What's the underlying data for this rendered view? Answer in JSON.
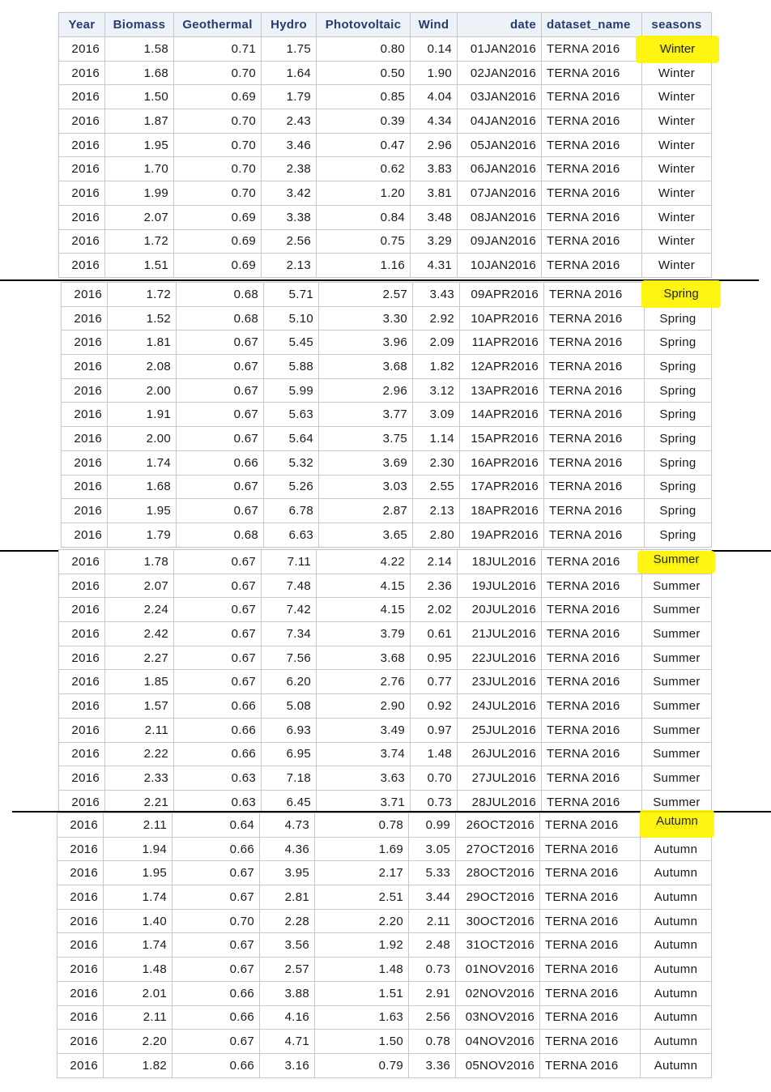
{
  "columns": [
    "Year",
    "Biomass",
    "Geothermal",
    "Hydro",
    "Photovoltaic",
    "Wind",
    "date",
    "dataset_name",
    "seasons"
  ],
  "sections": [
    {
      "season": "Winter",
      "rows": [
        [
          "2016",
          "1.58",
          "0.71",
          "1.75",
          "0.80",
          "0.14",
          "01JAN2016",
          "TERNA 2016",
          "Winter"
        ],
        [
          "2016",
          "1.68",
          "0.70",
          "1.64",
          "0.50",
          "1.90",
          "02JAN2016",
          "TERNA 2016",
          "Winter"
        ],
        [
          "2016",
          "1.50",
          "0.69",
          "1.79",
          "0.85",
          "4.04",
          "03JAN2016",
          "TERNA 2016",
          "Winter"
        ],
        [
          "2016",
          "1.87",
          "0.70",
          "2.43",
          "0.39",
          "4.34",
          "04JAN2016",
          "TERNA 2016",
          "Winter"
        ],
        [
          "2016",
          "1.95",
          "0.70",
          "3.46",
          "0.47",
          "2.96",
          "05JAN2016",
          "TERNA 2016",
          "Winter"
        ],
        [
          "2016",
          "1.70",
          "0.70",
          "2.38",
          "0.62",
          "3.83",
          "06JAN2016",
          "TERNA 2016",
          "Winter"
        ],
        [
          "2016",
          "1.99",
          "0.70",
          "3.42",
          "1.20",
          "3.81",
          "07JAN2016",
          "TERNA 2016",
          "Winter"
        ],
        [
          "2016",
          "2.07",
          "0.69",
          "3.38",
          "0.84",
          "3.48",
          "08JAN2016",
          "TERNA 2016",
          "Winter"
        ],
        [
          "2016",
          "1.72",
          "0.69",
          "2.56",
          "0.75",
          "3.29",
          "09JAN2016",
          "TERNA 2016",
          "Winter"
        ],
        [
          "2016",
          "1.51",
          "0.69",
          "2.13",
          "1.16",
          "4.31",
          "10JAN2016",
          "TERNA 2016",
          "Winter"
        ]
      ]
    },
    {
      "season": "Spring",
      "rows": [
        [
          "2016",
          "1.72",
          "0.68",
          "5.71",
          "2.57",
          "3.43",
          "09APR2016",
          "TERNA 2016",
          "Spring"
        ],
        [
          "2016",
          "1.52",
          "0.68",
          "5.10",
          "3.30",
          "2.92",
          "10APR2016",
          "TERNA 2016",
          "Spring"
        ],
        [
          "2016",
          "1.81",
          "0.67",
          "5.45",
          "3.96",
          "2.09",
          "11APR2016",
          "TERNA 2016",
          "Spring"
        ],
        [
          "2016",
          "2.08",
          "0.67",
          "5.88",
          "3.68",
          "1.82",
          "12APR2016",
          "TERNA 2016",
          "Spring"
        ],
        [
          "2016",
          "2.00",
          "0.67",
          "5.99",
          "2.96",
          "3.12",
          "13APR2016",
          "TERNA 2016",
          "Spring"
        ],
        [
          "2016",
          "1.91",
          "0.67",
          "5.63",
          "3.77",
          "3.09",
          "14APR2016",
          "TERNA 2016",
          "Spring"
        ],
        [
          "2016",
          "2.00",
          "0.67",
          "5.64",
          "3.75",
          "1.14",
          "15APR2016",
          "TERNA 2016",
          "Spring"
        ],
        [
          "2016",
          "1.74",
          "0.66",
          "5.32",
          "3.69",
          "2.30",
          "16APR2016",
          "TERNA 2016",
          "Spring"
        ],
        [
          "2016",
          "1.68",
          "0.67",
          "5.26",
          "3.03",
          "2.55",
          "17APR2016",
          "TERNA 2016",
          "Spring"
        ],
        [
          "2016",
          "1.95",
          "0.67",
          "6.78",
          "2.87",
          "2.13",
          "18APR2016",
          "TERNA 2016",
          "Spring"
        ],
        [
          "2016",
          "1.79",
          "0.68",
          "6.63",
          "3.65",
          "2.80",
          "19APR2016",
          "TERNA 2016",
          "Spring"
        ]
      ]
    },
    {
      "season": "Summer",
      "rows": [
        [
          "2016",
          "1.78",
          "0.67",
          "7.11",
          "4.22",
          "2.14",
          "18JUL2016",
          "TERNA 2016",
          "Summer"
        ],
        [
          "2016",
          "2.07",
          "0.67",
          "7.48",
          "4.15",
          "2.36",
          "19JUL2016",
          "TERNA 2016",
          "Summer"
        ],
        [
          "2016",
          "2.24",
          "0.67",
          "7.42",
          "4.15",
          "2.02",
          "20JUL2016",
          "TERNA 2016",
          "Summer"
        ],
        [
          "2016",
          "2.42",
          "0.67",
          "7.34",
          "3.79",
          "0.61",
          "21JUL2016",
          "TERNA 2016",
          "Summer"
        ],
        [
          "2016",
          "2.27",
          "0.67",
          "7.56",
          "3.68",
          "0.95",
          "22JUL2016",
          "TERNA 2016",
          "Summer"
        ],
        [
          "2016",
          "1.85",
          "0.67",
          "6.20",
          "2.76",
          "0.77",
          "23JUL2016",
          "TERNA 2016",
          "Summer"
        ],
        [
          "2016",
          "1.57",
          "0.66",
          "5.08",
          "2.90",
          "0.92",
          "24JUL2016",
          "TERNA 2016",
          "Summer"
        ],
        [
          "2016",
          "2.11",
          "0.66",
          "6.93",
          "3.49",
          "0.97",
          "25JUL2016",
          "TERNA 2016",
          "Summer"
        ],
        [
          "2016",
          "2.22",
          "0.66",
          "6.95",
          "3.74",
          "1.48",
          "26JUL2016",
          "TERNA 2016",
          "Summer"
        ],
        [
          "2016",
          "2.33",
          "0.63",
          "7.18",
          "3.63",
          "0.70",
          "27JUL2016",
          "TERNA 2016",
          "Summer"
        ],
        [
          "2016",
          "2.21",
          "0.63",
          "6.45",
          "3.71",
          "0.73",
          "28JUL2016",
          "TERNA 2016",
          "Summer"
        ]
      ]
    },
    {
      "season": "Autumn",
      "rows": [
        [
          "2016",
          "2.11",
          "0.64",
          "4.73",
          "0.78",
          "0.99",
          "26OCT2016",
          "TERNA 2016",
          "Autumn"
        ],
        [
          "2016",
          "1.94",
          "0.66",
          "4.36",
          "1.69",
          "3.05",
          "27OCT2016",
          "TERNA 2016",
          "Autumn"
        ],
        [
          "2016",
          "1.95",
          "0.67",
          "3.95",
          "2.17",
          "5.33",
          "28OCT2016",
          "TERNA 2016",
          "Autumn"
        ],
        [
          "2016",
          "1.74",
          "0.67",
          "2.81",
          "2.51",
          "3.44",
          "29OCT2016",
          "TERNA 2016",
          "Autumn"
        ],
        [
          "2016",
          "1.40",
          "0.70",
          "2.28",
          "2.20",
          "2.11",
          "30OCT2016",
          "TERNA 2016",
          "Autumn"
        ],
        [
          "2016",
          "1.74",
          "0.67",
          "3.56",
          "1.92",
          "2.48",
          "31OCT2016",
          "TERNA 2016",
          "Autumn"
        ],
        [
          "2016",
          "1.48",
          "0.67",
          "2.57",
          "1.48",
          "0.73",
          "01NOV2016",
          "TERNA 2016",
          "Autumn"
        ],
        [
          "2016",
          "2.01",
          "0.66",
          "3.88",
          "1.51",
          "2.91",
          "02NOV2016",
          "TERNA 2016",
          "Autumn"
        ],
        [
          "2016",
          "2.11",
          "0.66",
          "4.16",
          "1.63",
          "2.56",
          "03NOV2016",
          "TERNA 2016",
          "Autumn"
        ],
        [
          "2016",
          "2.20",
          "0.67",
          "4.71",
          "1.50",
          "0.78",
          "04NOV2016",
          "TERNA 2016",
          "Autumn"
        ],
        [
          "2016",
          "1.82",
          "0.66",
          "3.16",
          "0.79",
          "3.36",
          "05NOV2016",
          "TERNA 2016",
          "Autumn"
        ]
      ]
    }
  ],
  "highlight_color": "#fff500"
}
